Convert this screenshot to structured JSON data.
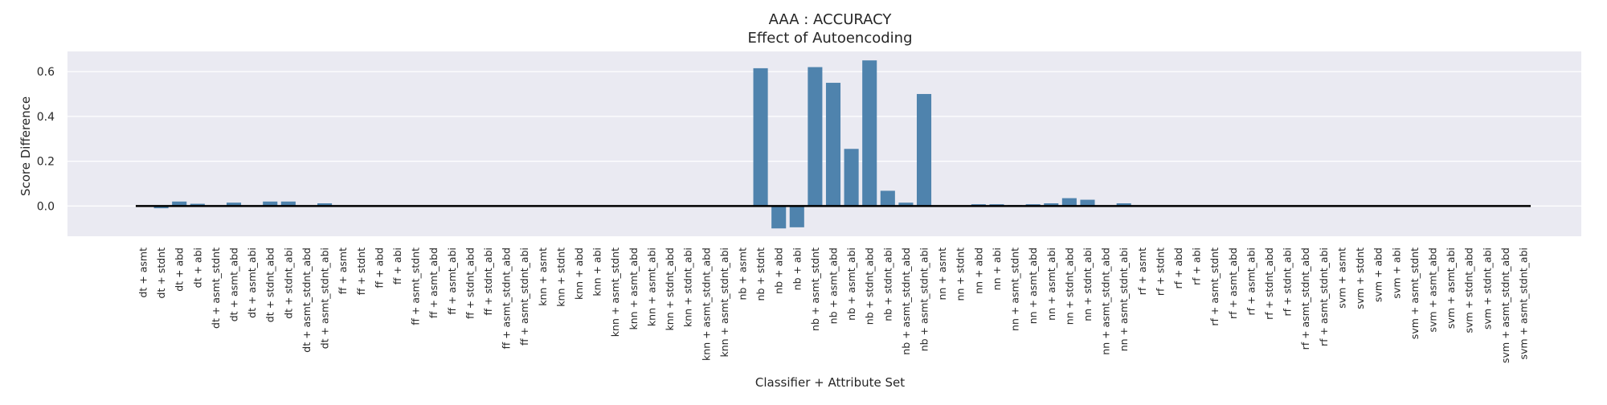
{
  "chart_data": {
    "type": "bar",
    "title": "AAA : ACCURACY",
    "subtitle": "Effect of Autoencoding",
    "xlabel": "Classifier + Attribute Set",
    "ylabel": "Score Difference",
    "ylim": [
      -0.135,
      0.69
    ],
    "yticks": [
      0.0,
      0.2,
      0.4,
      0.6
    ],
    "ytick_labels": [
      "0.0",
      "0.2",
      "0.4",
      "0.6"
    ],
    "grid": "horizontal",
    "bar_color": "#4f83ad",
    "background_color": "#eaeaf2",
    "baseline_color": "#000000",
    "categories": [
      "dt + asmt",
      "dt + stdnt",
      "dt + abd",
      "dt + abi",
      "dt + asmt_stdnt",
      "dt + asmt_abd",
      "dt + asmt_abi",
      "dt + stdnt_abd",
      "dt + stdnt_abi",
      "dt + asmt_stdnt_abd",
      "dt + asmt_stdnt_abi",
      "ff + asmt",
      "ff + stdnt",
      "ff + abd",
      "ff + abi",
      "ff + asmt_stdnt",
      "ff + asmt_abd",
      "ff + asmt_abi",
      "ff + stdnt_abd",
      "ff + stdnt_abi",
      "ff + asmt_stdnt_abd",
      "ff + asmt_stdnt_abi",
      "knn + asmt",
      "knn + stdnt",
      "knn + abd",
      "knn + abi",
      "knn + asmt_stdnt",
      "knn + asmt_abd",
      "knn + asmt_abi",
      "knn + stdnt_abd",
      "knn + stdnt_abi",
      "knn + asmt_stdnt_abd",
      "knn + asmt_stdnt_abi",
      "nb + asmt",
      "nb + stdnt",
      "nb + abd",
      "nb + abi",
      "nb + asmt_stdnt",
      "nb + asmt_abd",
      "nb + asmt_abi",
      "nb + stdnt_abd",
      "nb + stdnt_abi",
      "nb + asmt_stdnt_abd",
      "nb + asmt_stdnt_abi",
      "nn + asmt",
      "nn + stdnt",
      "nn + abd",
      "nn + abi",
      "nn + asmt_stdnt",
      "nn + asmt_abd",
      "nn + asmt_abi",
      "nn + stdnt_abd",
      "nn + stdnt_abi",
      "nn + asmt_stdnt_abd",
      "nn + asmt_stdnt_abi",
      "rf + asmt",
      "rf + stdnt",
      "rf + abd",
      "rf + abi",
      "rf + asmt_stdnt",
      "rf + asmt_abd",
      "rf + asmt_abi",
      "rf + stdnt_abd",
      "rf + stdnt_abi",
      "rf + asmt_stdnt_abd",
      "rf + asmt_stdnt_abi",
      "svm + asmt",
      "svm + stdnt",
      "svm + abd",
      "svm + abi",
      "svm + asmt_stdnt",
      "svm + asmt_abd",
      "svm + asmt_abi",
      "svm + stdnt_abd",
      "svm + stdnt_abi",
      "svm + asmt_stdnt_abd",
      "svm + asmt_stdnt_abi"
    ],
    "values": [
      0.0,
      -0.01,
      0.02,
      0.01,
      0.0,
      0.015,
      0.0,
      0.02,
      0.02,
      0.0,
      0.012,
      0.0,
      0.0,
      0.0,
      0.0,
      0.0,
      0.0,
      0.0,
      0.0,
      0.0,
      0.0,
      0.0,
      0.0,
      0.0,
      0.0,
      0.0,
      0.0,
      0.0,
      0.0,
      0.0,
      0.0,
      0.0,
      0.0,
      0.0,
      0.615,
      -0.1,
      -0.095,
      0.62,
      0.55,
      0.255,
      0.65,
      0.068,
      0.015,
      0.5,
      0.0,
      0.0,
      0.008,
      0.008,
      0.004,
      0.008,
      0.012,
      0.035,
      0.028,
      0.0,
      0.012,
      0.0,
      0.0,
      -0.004,
      0.0,
      0.0,
      0.0,
      0.0,
      0.0,
      0.0,
      0.0,
      0.0,
      0.0,
      0.0,
      0.0,
      0.0,
      0.0,
      0.0,
      0.0,
      0.0,
      0.0,
      0.0,
      0.0
    ]
  }
}
